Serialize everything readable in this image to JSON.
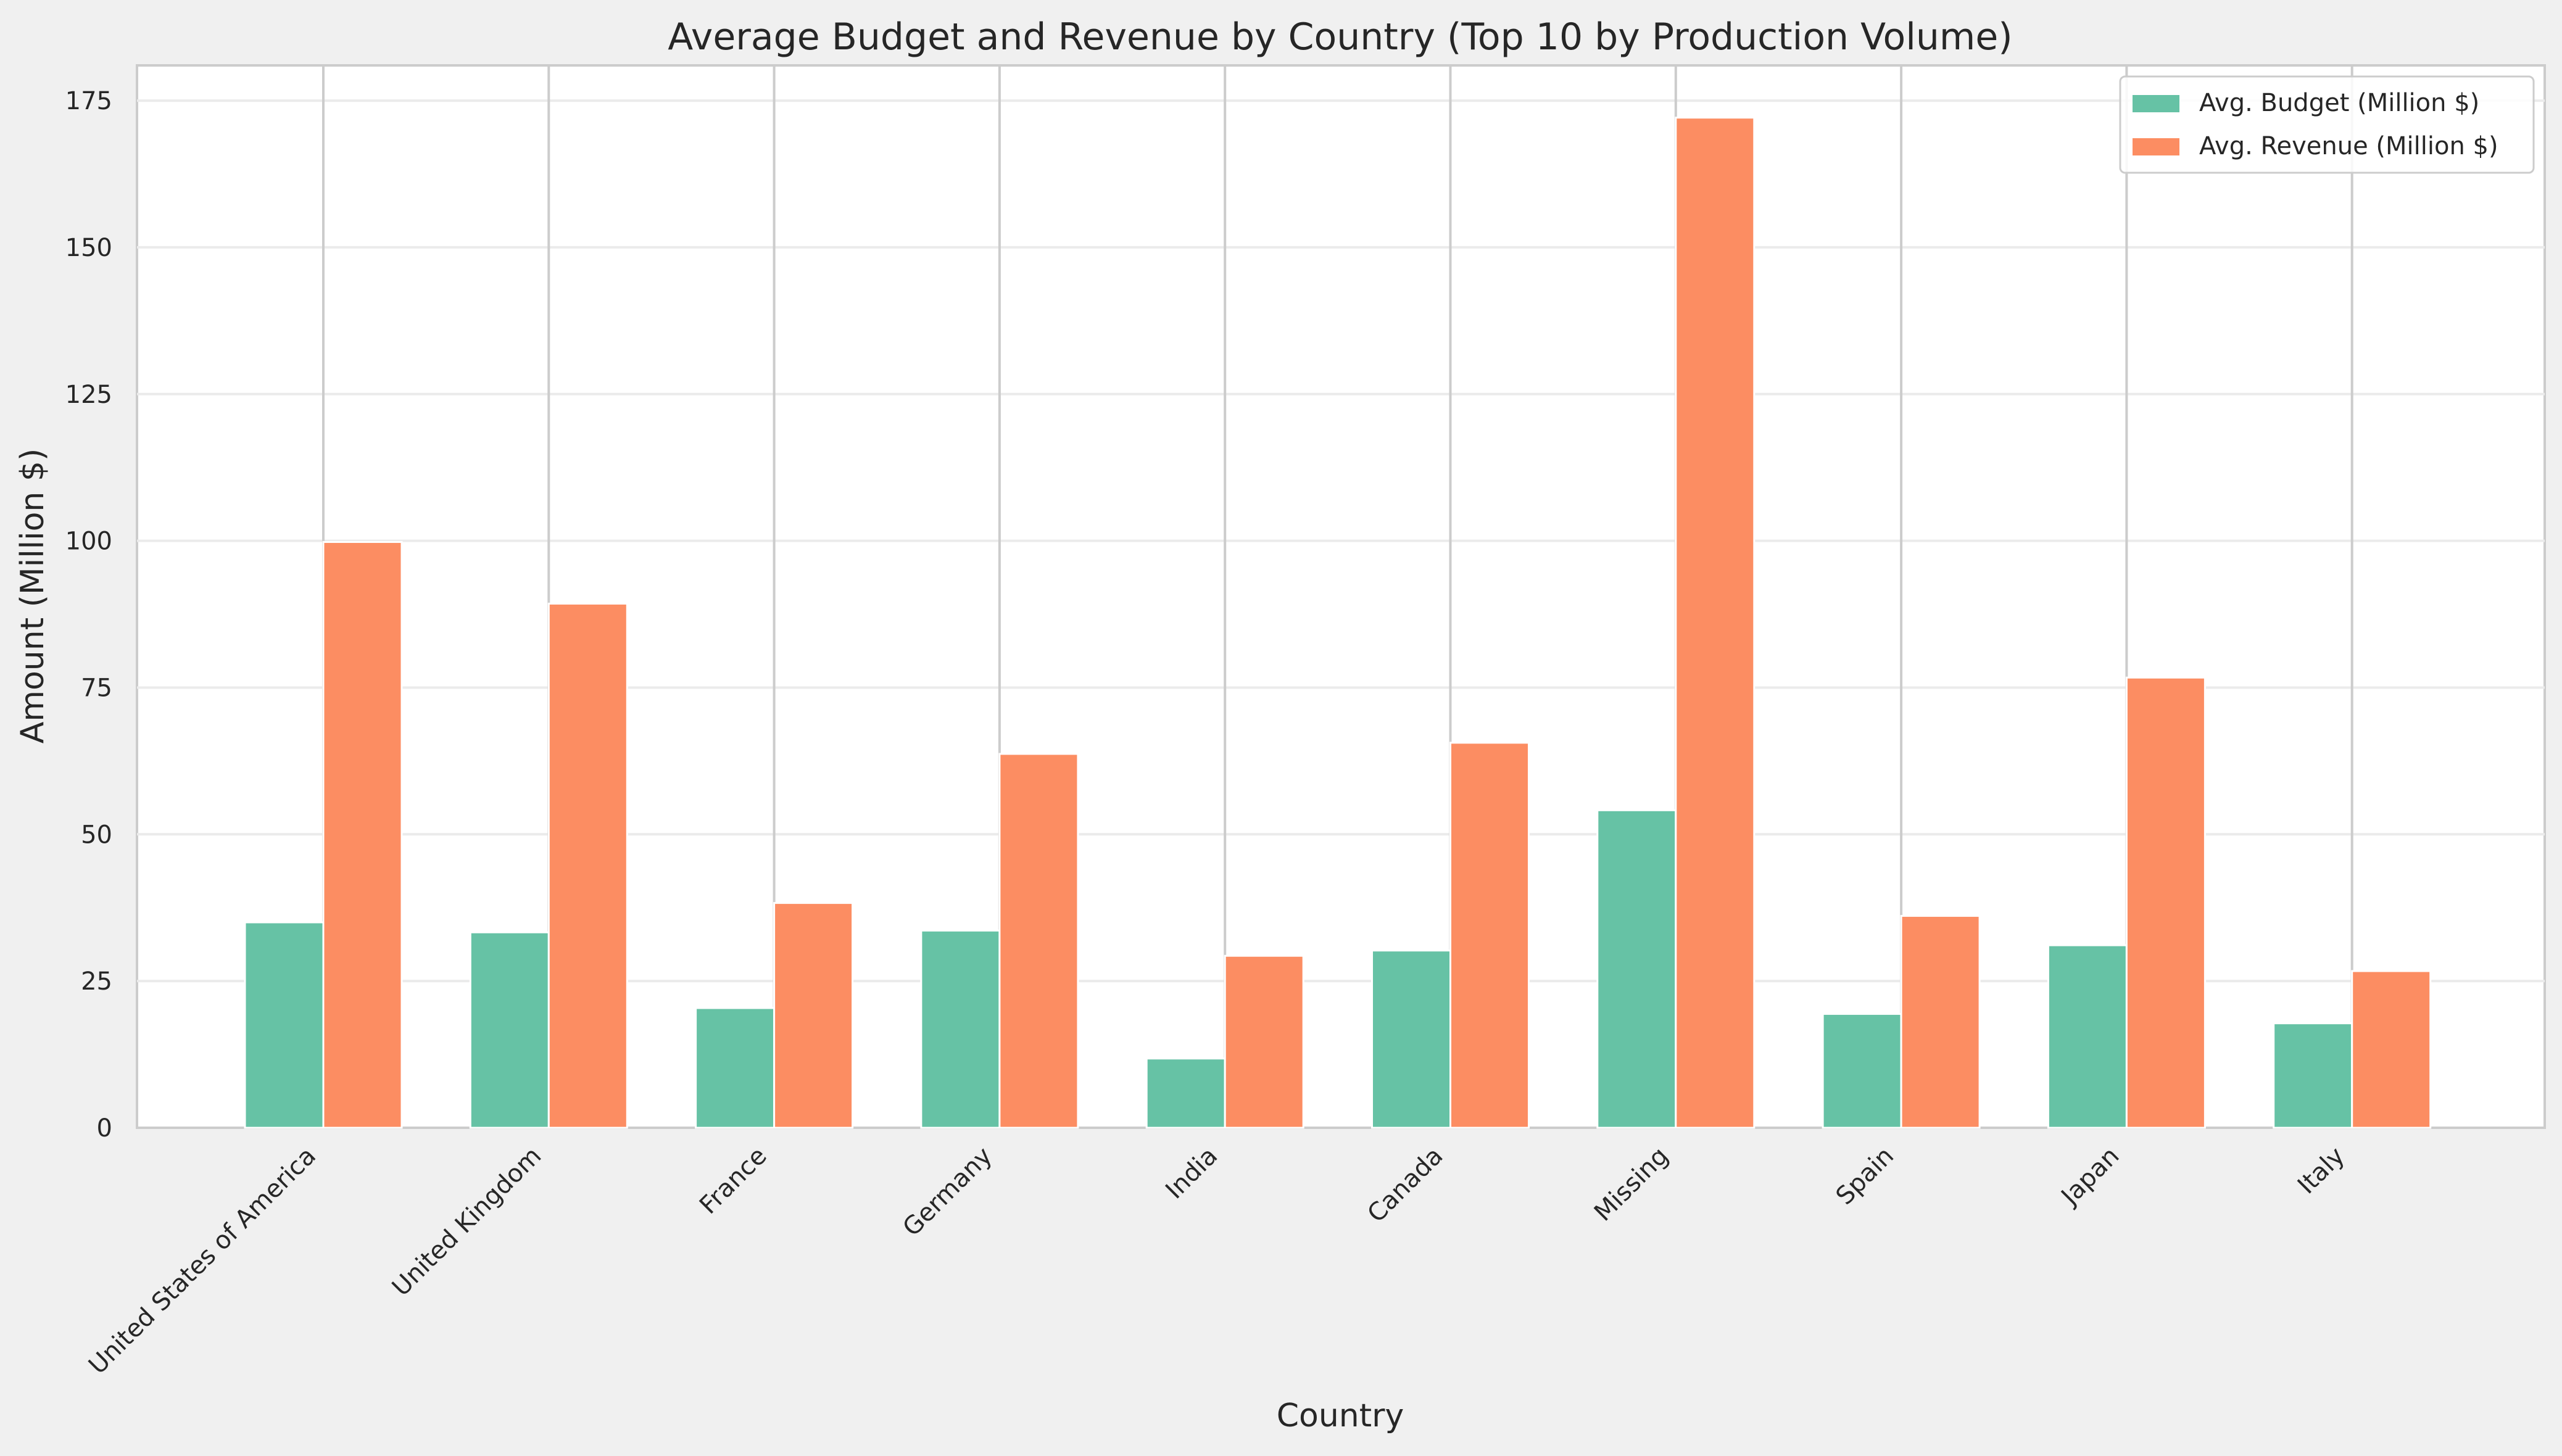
{
  "chart_data": {
    "type": "bar",
    "title": "Average Budget and Revenue by Country (Top 10 by Production Volume)",
    "xlabel": "Country",
    "ylabel": "Amount (Million $)",
    "categories": [
      "United States of America",
      "United Kingdom",
      "France",
      "Germany",
      "India",
      "Canada",
      "Missing",
      "Spain",
      "Japan",
      "Italy"
    ],
    "series": [
      {
        "name": "Avg. Budget (Million $)",
        "color": "#66c2a5",
        "values": [
          35.0,
          33.3,
          20.4,
          33.6,
          11.8,
          30.2,
          54.1,
          19.4,
          31.1,
          17.8
        ]
      },
      {
        "name": "Avg. Revenue (Million $)",
        "color": "#fc8d62",
        "values": [
          99.8,
          89.3,
          38.3,
          63.7,
          29.3,
          65.6,
          172.1,
          36.1,
          76.7,
          26.7
        ]
      }
    ],
    "ylim": [
      0,
      181
    ],
    "yticks": [
      0,
      25,
      50,
      75,
      100,
      125,
      150,
      175
    ],
    "grid": true,
    "legend": "top-right"
  }
}
